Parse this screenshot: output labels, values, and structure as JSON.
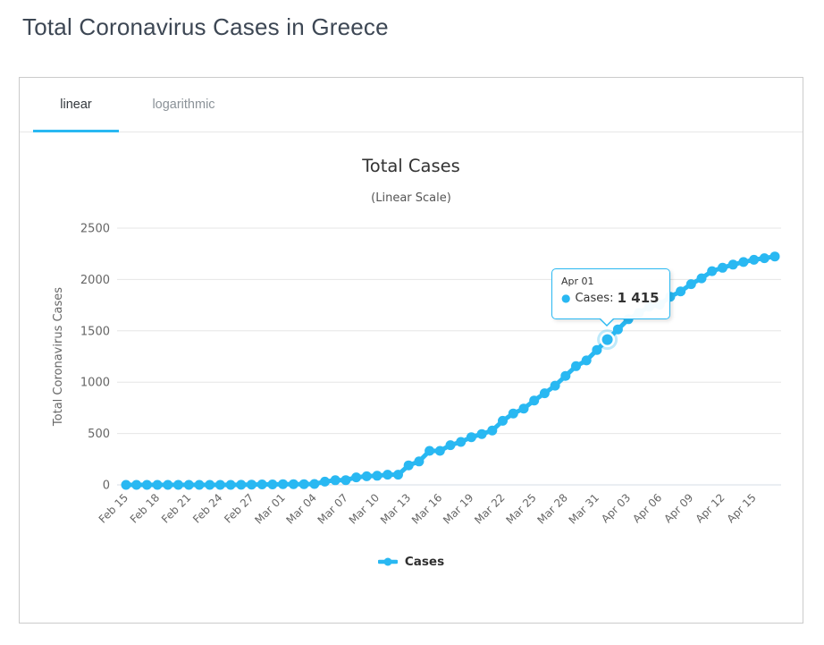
{
  "page": {
    "title": "Total Coronavirus Cases in Greece"
  },
  "tabs": [
    {
      "label": "linear",
      "active": true
    },
    {
      "label": "logarithmic",
      "active": false
    }
  ],
  "colors": {
    "accent": "#29b8f2",
    "page_title_text": "#3d4754",
    "chart_text": "#333333",
    "axis_text": "#666666",
    "grid": "#e6e6e6",
    "axis_line": "#d6dde6",
    "card_border": "#cbcbcb"
  },
  "chart_data": {
    "type": "line",
    "title": "Total Cases",
    "subtitle": "(Linear Scale)",
    "xlabel": "",
    "ylabel": "Total Coronavirus Cases",
    "ylim": [
      0,
      2500
    ],
    "yticks": [
      0,
      500,
      1000,
      1500,
      2000,
      2500
    ],
    "grid": "horizontal-only",
    "legend_position": "bottom-center",
    "xtick_labels": [
      "Feb 15",
      "Feb 18",
      "Feb 21",
      "Feb 24",
      "Feb 27",
      "Mar 01",
      "Mar 04",
      "Mar 07",
      "Mar 10",
      "Mar 13",
      "Mar 16",
      "Mar 19",
      "Mar 22",
      "Mar 25",
      "Mar 28",
      "Mar 31",
      "Apr 03",
      "Apr 06",
      "Apr 09",
      "Apr 12",
      "Apr 15"
    ],
    "xtick_step": 3,
    "x": [
      "Feb 15",
      "Feb 16",
      "Feb 17",
      "Feb 18",
      "Feb 19",
      "Feb 20",
      "Feb 21",
      "Feb 22",
      "Feb 23",
      "Feb 24",
      "Feb 25",
      "Feb 26",
      "Feb 27",
      "Feb 28",
      "Feb 29",
      "Mar 01",
      "Mar 02",
      "Mar 03",
      "Mar 04",
      "Mar 05",
      "Mar 06",
      "Mar 07",
      "Mar 08",
      "Mar 09",
      "Mar 10",
      "Mar 11",
      "Mar 12",
      "Mar 13",
      "Mar 14",
      "Mar 15",
      "Mar 16",
      "Mar 17",
      "Mar 18",
      "Mar 19",
      "Mar 20",
      "Mar 21",
      "Mar 22",
      "Mar 23",
      "Mar 24",
      "Mar 25",
      "Mar 26",
      "Mar 27",
      "Mar 28",
      "Mar 29",
      "Mar 30",
      "Mar 31",
      "Apr 01",
      "Apr 02",
      "Apr 03",
      "Apr 04",
      "Apr 05",
      "Apr 06",
      "Apr 07",
      "Apr 08",
      "Apr 09",
      "Apr 10",
      "Apr 11",
      "Apr 12",
      "Apr 13",
      "Apr 14",
      "Apr 15",
      "Apr 16",
      "Apr 17"
    ],
    "series": [
      {
        "name": "Cases",
        "color": "#29b8f2",
        "values": [
          0,
          0,
          0,
          0,
          0,
          0,
          0,
          0,
          0,
          0,
          0,
          1,
          3,
          4,
          4,
          7,
          7,
          7,
          9,
          31,
          45,
          46,
          73,
          84,
          89,
          99,
          99,
          190,
          228,
          331,
          331,
          387,
          418,
          464,
          495,
          530,
          624,
          695,
          743,
          821,
          892,
          966,
          1061,
          1156,
          1212,
          1314,
          1415,
          1514,
          1613,
          1673,
          1735,
          1755,
          1832,
          1884,
          1955,
          2011,
          2081,
          2114,
          2145,
          2170,
          2192,
          2207,
          2224
        ]
      }
    ],
    "legend": [
      {
        "name": "Cases"
      }
    ],
    "tooltip": {
      "date": "Apr 01",
      "bullet_glyph": "●",
      "series_label": "Cases:",
      "value": "1 415",
      "point_index": 46
    }
  }
}
